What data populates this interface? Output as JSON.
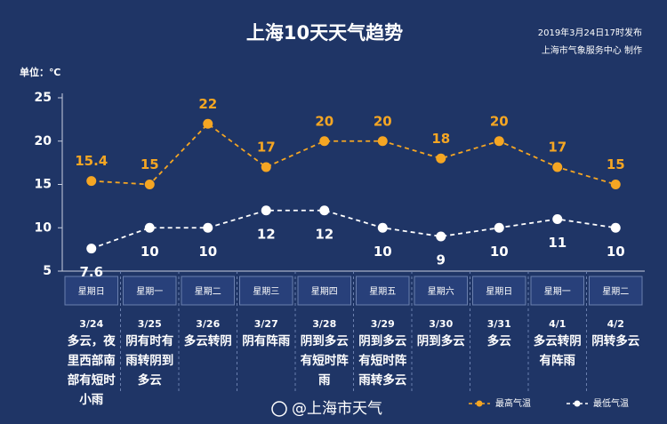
{
  "chart_data": {
    "type": "line",
    "title": "上海10天天气趋势",
    "subtitle": [
      "2019年3月24日17时发布",
      "上海市气象服务中心  制作"
    ],
    "unit_label": "单位：℃",
    "weekdays": [
      "星期日",
      "星期一",
      "星期二",
      "星期三",
      "星期四",
      "星期五",
      "星期六",
      "星期日",
      "星期一",
      "星期二"
    ],
    "categories": [
      "3/24",
      "3/25",
      "3/26",
      "3/27",
      "3/28",
      "3/29",
      "3/30",
      "3/31",
      "4/1",
      "4/2"
    ],
    "weather": [
      "多云，夜里西部南部有短时小雨",
      "阴有时有雨转阴到多云",
      "多云转阴",
      "阴有阵雨",
      "阴到多云有短时阵雨",
      "阴到多云有短时阵雨转多云",
      "阴到多云",
      "多云",
      "多云转阴有阵雨",
      "阴转多云"
    ],
    "series": [
      {
        "name": "最高气温",
        "color": "#f5a623",
        "values": [
          15.4,
          15,
          22,
          17,
          20,
          20,
          18,
          20,
          17,
          15
        ]
      },
      {
        "name": "最低气温",
        "color": "#ffffff",
        "values": [
          7.6,
          10,
          10,
          12,
          12,
          10,
          9,
          10,
          11,
          10
        ]
      }
    ],
    "ylim": [
      5,
      25
    ],
    "yticks": [
      5,
      10,
      15,
      20,
      25
    ],
    "grid": false,
    "watermark": "@上海市天气"
  }
}
